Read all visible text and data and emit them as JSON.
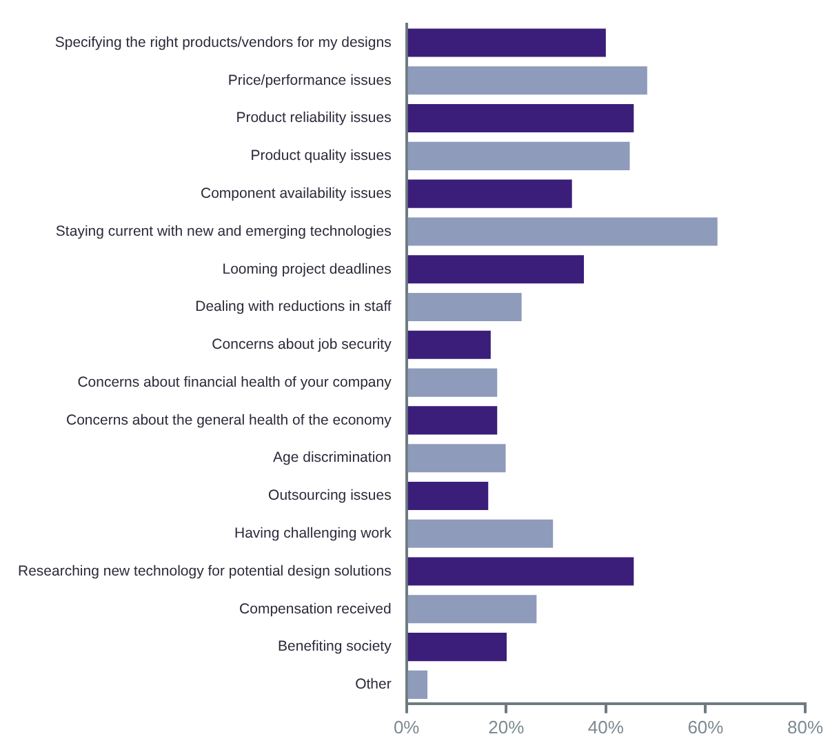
{
  "chart_data": {
    "type": "bar",
    "orientation": "horizontal",
    "categories": [
      "Specifying the right products/vendors for my designs",
      "Price/performance issues",
      "Product reliability issues",
      "Product quality issues",
      "Component availability issues",
      "Staying current with new and emerging technologies",
      "Looming project deadlines",
      "Dealing with reductions in staff",
      "Concerns about job security",
      "Concerns about financial health of your company",
      "Concerns about the general health of the economy",
      "Age discrimination",
      "Outsourcing issues",
      "Having challenging work",
      "Researching new technology for potential design solutions",
      "Compensation received",
      "Benefiting society",
      "Other"
    ],
    "values": [
      40,
      48.3,
      45.6,
      44.8,
      33.2,
      62.4,
      35.6,
      23.1,
      16.9,
      18.2,
      18.2,
      19.9,
      16.4,
      29.4,
      45.6,
      26.1,
      20.1,
      4.2
    ],
    "colors": [
      "#3a1e7a",
      "#8e9bbb",
      "#3a1e7a",
      "#8e9bbb",
      "#3a1e7a",
      "#8e9bbb",
      "#3a1e7a",
      "#8e9bbb",
      "#3a1e7a",
      "#8e9bbb",
      "#3a1e7a",
      "#8e9bbb",
      "#3a1e7a",
      "#8e9bbb",
      "#3a1e7a",
      "#8e9bbb",
      "#3a1e7a",
      "#8e9bbb"
    ],
    "xlim": [
      0,
      80
    ],
    "xticks": [
      {
        "value": 0,
        "label": "0%"
      },
      {
        "value": 20,
        "label": "20%"
      },
      {
        "value": 40,
        "label": "40%"
      },
      {
        "value": 60,
        "label": "60%"
      },
      {
        "value": 80,
        "label": "80%"
      }
    ],
    "grid": false,
    "legend": false
  }
}
